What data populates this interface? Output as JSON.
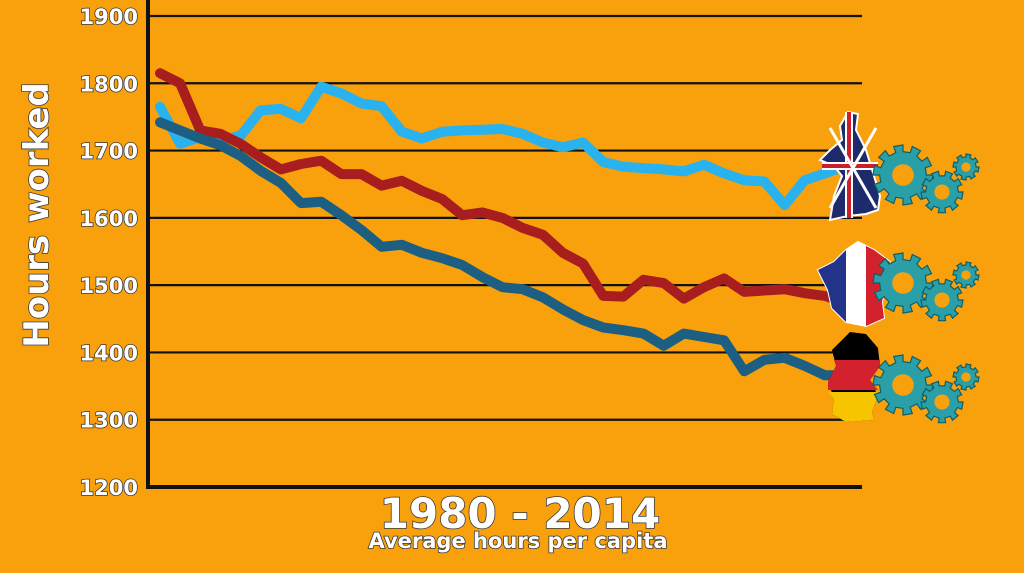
{
  "chart_data": {
    "type": "line",
    "title": "1980 - 2014",
    "subtitle": "Average hours per capita",
    "ylabel": "Hours worked",
    "xlabel": "",
    "ylim": [
      1200,
      1900
    ],
    "yticks": [
      1200,
      1300,
      1400,
      1500,
      1600,
      1700,
      1800,
      1900
    ],
    "x": [
      1980,
      1981,
      1982,
      1983,
      1984,
      1985,
      1986,
      1987,
      1988,
      1989,
      1990,
      1991,
      1992,
      1993,
      1994,
      1995,
      1996,
      1997,
      1998,
      1999,
      2000,
      2001,
      2002,
      2003,
      2004,
      2005,
      2006,
      2007,
      2008,
      2009,
      2010,
      2011,
      2012,
      2013,
      2014
    ],
    "grid": true,
    "series": [
      {
        "country": "United Kingdom",
        "color": "#29b2ee",
        "values": [
          1765,
          1710,
          1720,
          1715,
          1722,
          1760,
          1762,
          1748,
          1795,
          1785,
          1770,
          1766,
          1728,
          1718,
          1728,
          1730,
          1731,
          1732,
          1725,
          1712,
          1705,
          1712,
          1683,
          1676,
          1674,
          1672,
          1669,
          1679,
          1666,
          1656,
          1654,
          1619,
          1656,
          1666,
          1677
        ]
      },
      {
        "country": "France",
        "color": "#a81e1e",
        "values": [
          1815,
          1800,
          1730,
          1725,
          1710,
          1690,
          1672,
          1680,
          1685,
          1665,
          1665,
          1648,
          1655,
          1640,
          1628,
          1604,
          1608,
          1600,
          1585,
          1575,
          1548,
          1532,
          1484,
          1483,
          1508,
          1503,
          1480,
          1497,
          1510,
          1490,
          1492,
          1494,
          1488,
          1484,
          1474
        ]
      },
      {
        "country": "Germany",
        "color": "#1c5f82",
        "values": [
          1742,
          1730,
          1718,
          1708,
          1692,
          1670,
          1652,
          1622,
          1624,
          1604,
          1582,
          1557,
          1560,
          1548,
          1540,
          1530,
          1512,
          1497,
          1494,
          1482,
          1464,
          1448,
          1437,
          1433,
          1428,
          1410,
          1428,
          1423,
          1418,
          1372,
          1389,
          1392,
          1380,
          1366,
          1366
        ]
      }
    ]
  }
}
